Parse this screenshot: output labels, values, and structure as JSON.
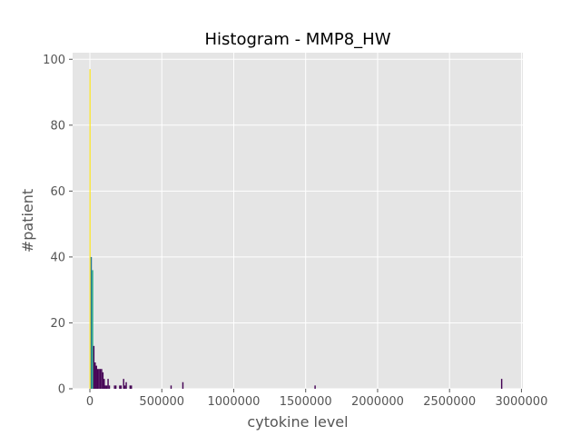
{
  "chart_data": {
    "type": "bar",
    "title": "Histogram - MMP8_HW",
    "xlabel": "cytokine level",
    "ylabel": "#patient",
    "xlim": [
      -120000,
      3010000
    ],
    "ylim": [
      0,
      102
    ],
    "grid": true,
    "legend": "none",
    "x_ticks": [
      {
        "value": 0,
        "label": "0"
      },
      {
        "value": 500000,
        "label": "500000"
      },
      {
        "value": 1000000,
        "label": "1000000"
      },
      {
        "value": 1500000,
        "label": "1500000"
      },
      {
        "value": 2000000,
        "label": "2000000"
      },
      {
        "value": 2500000,
        "label": "2500000"
      },
      {
        "value": 3000000,
        "label": "3000000"
      }
    ],
    "y_ticks": [
      {
        "value": 0,
        "label": "0"
      },
      {
        "value": 20,
        "label": "20"
      },
      {
        "value": 40,
        "label": "40"
      },
      {
        "value": 60,
        "label": "60"
      },
      {
        "value": 80,
        "label": "80"
      },
      {
        "value": 100,
        "label": "100"
      }
    ],
    "series": [
      {
        "color": "#fde725",
        "bins": [
          {
            "x0": -3000,
            "x1": 5000,
            "count": 97
          }
        ]
      },
      {
        "color": "#2a788e",
        "bins": [
          {
            "x0": 5000,
            "x1": 14000,
            "count": 40
          }
        ]
      },
      {
        "color": "#22a884",
        "bins": [
          {
            "x0": 14000,
            "x1": 23000,
            "count": 36
          }
        ]
      },
      {
        "color": "#440154",
        "bins": [
          {
            "x0": 23000,
            "x1": 32000,
            "count": 13
          },
          {
            "x0": 32000,
            "x1": 41000,
            "count": 8
          },
          {
            "x0": 41000,
            "x1": 50000,
            "count": 7
          },
          {
            "x0": 50000,
            "x1": 59000,
            "count": 6
          },
          {
            "x0": 59000,
            "x1": 68000,
            "count": 6
          },
          {
            "x0": 68000,
            "x1": 77000,
            "count": 6
          },
          {
            "x0": 77000,
            "x1": 86000,
            "count": 6
          },
          {
            "x0": 86000,
            "x1": 95000,
            "count": 5
          },
          {
            "x0": 95000,
            "x1": 104000,
            "count": 3
          },
          {
            "x0": 104000,
            "x1": 113000,
            "count": 1
          },
          {
            "x0": 113000,
            "x1": 122000,
            "count": 1
          },
          {
            "x0": 122000,
            "x1": 131000,
            "count": 3
          },
          {
            "x0": 131000,
            "x1": 140000,
            "count": 1
          },
          {
            "x0": 167000,
            "x1": 176000,
            "count": 1
          },
          {
            "x0": 176000,
            "x1": 185000,
            "count": 1
          },
          {
            "x0": 203000,
            "x1": 212000,
            "count": 1
          },
          {
            "x0": 212000,
            "x1": 221000,
            "count": 1
          },
          {
            "x0": 230000,
            "x1": 239000,
            "count": 3
          },
          {
            "x0": 239000,
            "x1": 248000,
            "count": 1
          },
          {
            "x0": 248000,
            "x1": 257000,
            "count": 2
          },
          {
            "x0": 275000,
            "x1": 284000,
            "count": 1
          },
          {
            "x0": 284000,
            "x1": 293000,
            "count": 1
          },
          {
            "x0": 560000,
            "x1": 569000,
            "count": 1
          },
          {
            "x0": 642000,
            "x1": 651000,
            "count": 2
          },
          {
            "x0": 1561000,
            "x1": 1570000,
            "count": 1
          },
          {
            "x0": 2858000,
            "x1": 2867000,
            "count": 3
          }
        ]
      }
    ]
  }
}
